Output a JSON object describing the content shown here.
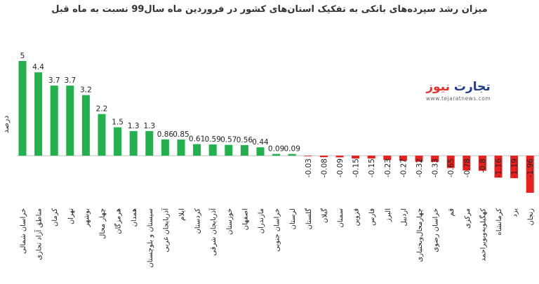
{
  "chart_data": {
    "type": "bar",
    "title": "میزان رشد سپرده‌های بانکی به تفکیک استان‌های کشور در فروردین ماه سال99 نسبت به ماه قبل",
    "ylabel": "درصد",
    "categories": [
      "خراسان شمالی",
      "مناطق آزاد تجاری",
      "کرمان",
      "تهران",
      "بوشهر",
      "چهار محال",
      "هرمزگان",
      "همدان",
      "سیستان و بلوچستان",
      "آذربایجان غربی",
      "ایلام",
      "کردستان",
      "آذربایجان شرقی",
      "خوزستان",
      "اصفهان",
      "مازندران",
      "خراسان جنوبی",
      "لرستان",
      "گلستان",
      "گیلان",
      "سمنان",
      "قزوین",
      "فارس",
      "البرز",
      "اردبیل",
      "چهارمحال‌وبختیاری",
      "خراسان رضوی",
      "قم",
      "مرکزی",
      "کهگیلویه‌وبویراحمد",
      "کرمانشاه",
      "یزد",
      "زنجان"
    ],
    "values": [
      5,
      4.4,
      3.7,
      3.7,
      3.2,
      2.2,
      1.5,
      1.3,
      1.3,
      0.86,
      0.85,
      0.61,
      0.59,
      0.57,
      0.56,
      0.44,
      0.09,
      0.09,
      -0.03,
      -0.08,
      -0.09,
      -0.15,
      -0.15,
      -0.23,
      -0.27,
      -0.32,
      -0.33,
      -0.65,
      -0.78,
      -0.8,
      -1.16,
      -1.19,
      -1.96
    ],
    "value_labels": [
      "5",
      "4.4",
      "3.7",
      "3.7",
      "3.2",
      "2.2",
      "1.5",
      "1.3",
      "1.3",
      "0.86",
      "0.85",
      "0.61",
      "0.59",
      "0.57",
      "0.56",
      "0.44",
      "0.09",
      "0.09",
      "-0.03",
      "-0.08",
      "-0.09",
      "-0.15",
      "-0.15",
      "-0.23",
      "-0.27",
      "-0.32",
      "-0.33",
      "-0.65",
      "-0.78",
      "-0.8",
      "-1.16",
      "-1.19",
      "-1.96"
    ],
    "colors": {
      "positive": "#22b14c",
      "negative": "#e8211f",
      "axis": "#bfbfbf"
    },
    "ylim": [
      -2,
      5
    ],
    "grid": false,
    "legend": "none"
  },
  "logo": {
    "mark_main": "تجارت",
    "mark_accent": "نیوز",
    "url": "www.tejaratnews.com"
  }
}
